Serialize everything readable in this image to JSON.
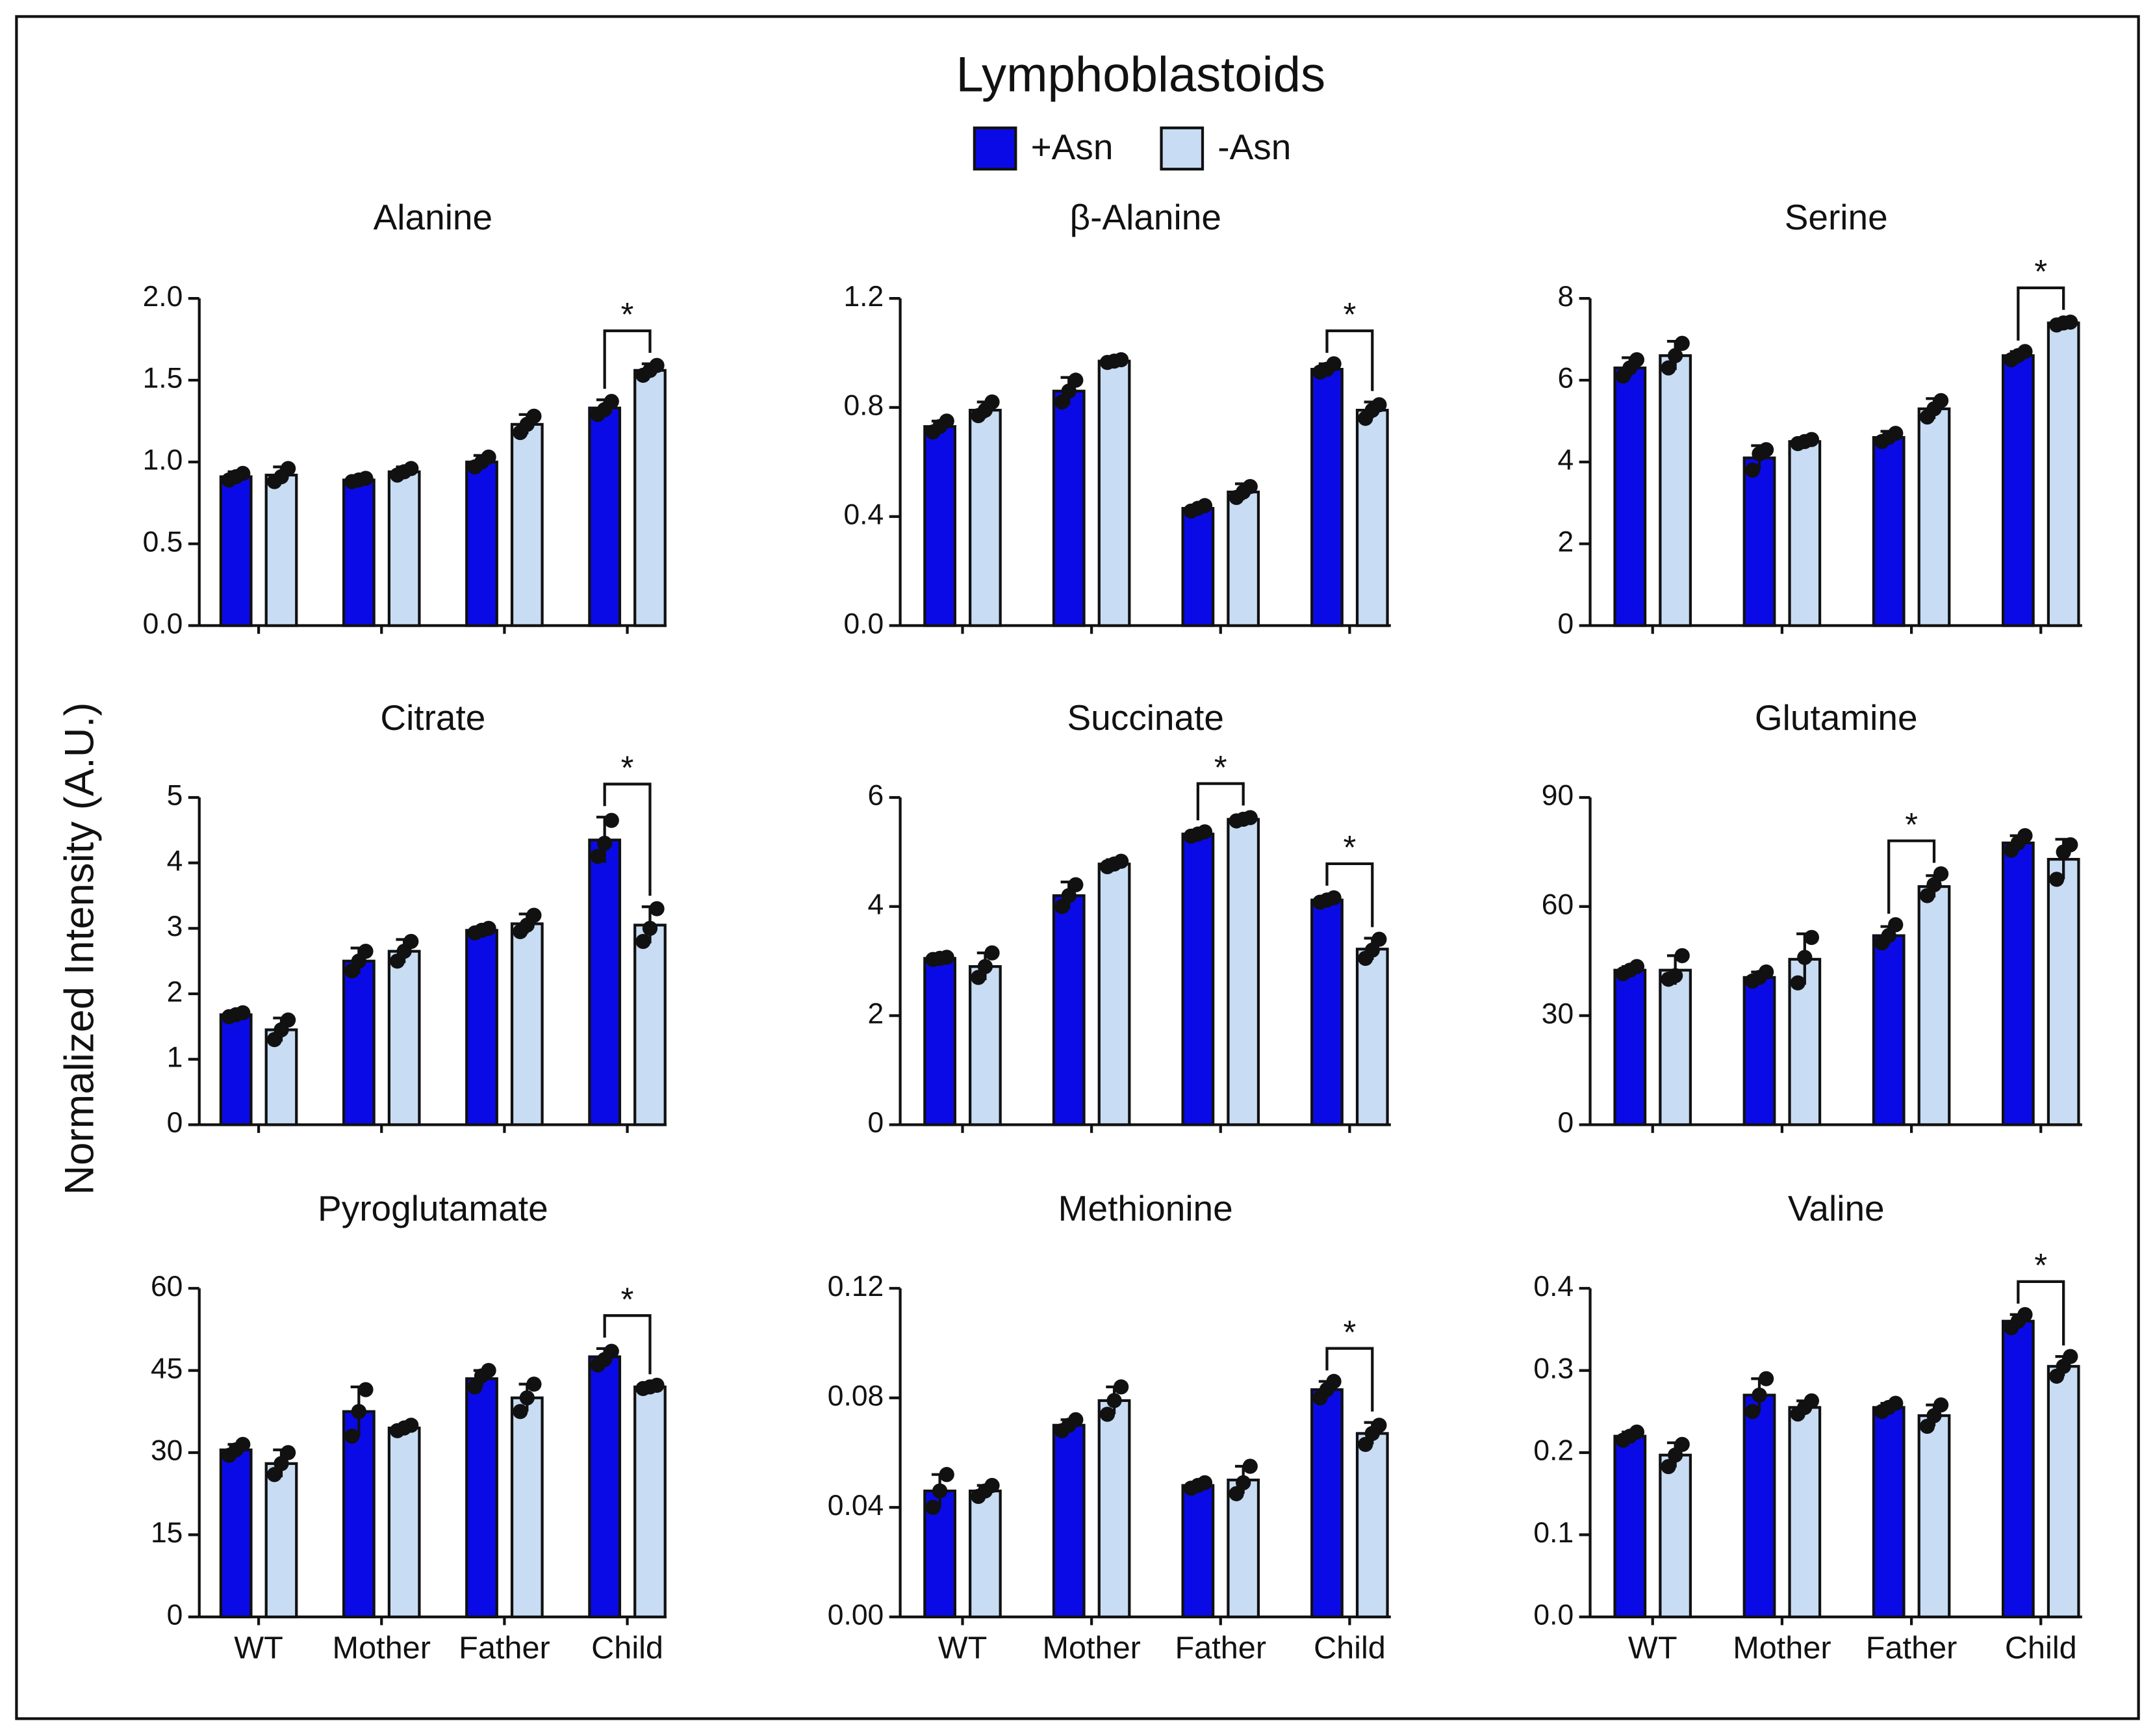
{
  "title": "Lymphoblastoids",
  "y_label": "Normalized Intensity (A.U.)",
  "chart_data": [
    {
      "type": "bar",
      "title": "Alanine",
      "categories": [
        null,
        null,
        null,
        null
      ],
      "ylim": [
        0,
        2
      ],
      "yticks": [
        {
          "value": 0,
          "label": "0.0"
        },
        0.5,
        {
          "value": 1,
          "label": "1.0"
        },
        1.5,
        {
          "value": 2,
          "label": "2.0"
        }
      ],
      "significance": [
        null,
        null,
        null,
        "*"
      ],
      "series": [
        {
          "name": "+Asn",
          "color": "#0a0ae6",
          "values": [
            0.91,
            0.89,
            1.0,
            1.33
          ],
          "errors": [
            0.03,
            0.02,
            0.04,
            0.05
          ],
          "points": [
            [
              0.89,
              0.91,
              0.93
            ],
            [
              0.88,
              0.89,
              0.9
            ],
            [
              0.97,
              1.0,
              1.03
            ],
            [
              1.29,
              1.32,
              1.37
            ]
          ]
        },
        {
          "name": "-Asn",
          "color": "#c8dcf4",
          "values": [
            0.92,
            0.94,
            1.23,
            1.56
          ],
          "errors": [
            0.05,
            0.03,
            0.06,
            0.04
          ],
          "points": [
            [
              0.88,
              0.91,
              0.96
            ],
            [
              0.92,
              0.94,
              0.96
            ],
            [
              1.18,
              1.23,
              1.28
            ],
            [
              1.53,
              1.56,
              1.59
            ]
          ]
        }
      ]
    },
    {
      "type": "bar",
      "title": "β-Alanine",
      "categories": [
        null,
        null,
        null,
        null
      ],
      "ylim": [
        0,
        1.2
      ],
      "yticks": [
        {
          "value": 0,
          "label": "0.0"
        },
        0.4,
        0.8,
        1.2
      ],
      "significance": [
        null,
        null,
        null,
        "*"
      ],
      "series": [
        {
          "name": "+Asn",
          "color": "#0a0ae6",
          "values": [
            0.73,
            0.86,
            0.43,
            0.94
          ],
          "errors": [
            0.02,
            0.05,
            0.01,
            0.02
          ],
          "points": [
            [
              0.71,
              0.73,
              0.75
            ],
            [
              0.82,
              0.86,
              0.9
            ],
            [
              0.42,
              0.43,
              0.44
            ],
            [
              0.93,
              0.94,
              0.96
            ]
          ]
        },
        {
          "name": "-Asn",
          "color": "#c8dcf4",
          "values": [
            0.79,
            0.97,
            0.49,
            0.79
          ],
          "errors": [
            0.03,
            0.005,
            0.03,
            0.03
          ],
          "points": [
            [
              0.77,
              0.79,
              0.82
            ],
            [
              0.965,
              0.97,
              0.975
            ],
            [
              0.47,
              0.49,
              0.51
            ],
            [
              0.76,
              0.79,
              0.81
            ]
          ]
        }
      ]
    },
    {
      "type": "bar",
      "title": "Serine",
      "categories": [
        null,
        null,
        null,
        null
      ],
      "ylim": [
        0,
        8
      ],
      "yticks": [
        0,
        2,
        4,
        6,
        8
      ],
      "significance": [
        null,
        null,
        null,
        "*"
      ],
      "series": [
        {
          "name": "+Asn",
          "color": "#0a0ae6",
          "values": [
            6.3,
            4.1,
            4.6,
            6.6
          ],
          "errors": [
            0.25,
            0.3,
            0.15,
            0.1
          ],
          "points": [
            [
              6.1,
              6.3,
              6.5
            ],
            [
              3.8,
              4.2,
              4.3
            ],
            [
              4.5,
              4.6,
              4.7
            ],
            [
              6.5,
              6.6,
              6.7
            ]
          ]
        },
        {
          "name": "-Asn",
          "color": "#c8dcf4",
          "values": [
            6.6,
            4.5,
            5.3,
            7.4
          ],
          "errors": [
            0.35,
            0.08,
            0.25,
            0.05
          ],
          "points": [
            [
              6.3,
              6.6,
              6.9
            ],
            [
              4.45,
              4.5,
              4.55
            ],
            [
              5.1,
              5.3,
              5.5
            ],
            [
              7.35,
              7.4,
              7.42
            ]
          ]
        }
      ]
    },
    {
      "type": "bar",
      "title": "Citrate",
      "categories": [
        null,
        null,
        null,
        null
      ],
      "ylim": [
        0,
        5
      ],
      "yticks": [
        0,
        1,
        2,
        3,
        4,
        5
      ],
      "significance": [
        null,
        null,
        null,
        "*"
      ],
      "series": [
        {
          "name": "+Asn",
          "color": "#0a0ae6",
          "values": [
            1.68,
            2.5,
            2.97,
            4.35
          ],
          "errors": [
            0.04,
            0.2,
            0.05,
            0.35
          ],
          "points": [
            [
              1.65,
              1.68,
              1.71
            ],
            [
              2.35,
              2.5,
              2.65
            ],
            [
              2.93,
              2.97,
              3.0
            ],
            [
              4.1,
              4.3,
              4.65
            ]
          ]
        },
        {
          "name": "-Asn",
          "color": "#c8dcf4",
          "values": [
            1.45,
            2.65,
            3.07,
            3.05
          ],
          "errors": [
            0.18,
            0.18,
            0.15,
            0.28
          ],
          "points": [
            [
              1.3,
              1.45,
              1.6
            ],
            [
              2.5,
              2.65,
              2.8
            ],
            [
              2.95,
              3.05,
              3.2
            ],
            [
              2.8,
              3.0,
              3.3
            ]
          ]
        }
      ]
    },
    {
      "type": "bar",
      "title": "Succinate",
      "categories": [
        null,
        null,
        null,
        null
      ],
      "ylim": [
        0,
        6
      ],
      "yticks": [
        0,
        2,
        4,
        6
      ],
      "significance": [
        null,
        null,
        "*",
        "*"
      ],
      "series": [
        {
          "name": "+Asn",
          "color": "#0a0ae6",
          "values": [
            3.05,
            4.2,
            5.33,
            4.12
          ],
          "errors": [
            0.03,
            0.25,
            0.05,
            0.06
          ],
          "points": [
            [
              3.03,
              3.05,
              3.07
            ],
            [
              4.0,
              4.2,
              4.4
            ],
            [
              5.29,
              5.33,
              5.37
            ],
            [
              4.08,
              4.12,
              4.16
            ]
          ]
        },
        {
          "name": "-Asn",
          "color": "#c8dcf4",
          "values": [
            2.9,
            4.78,
            5.6,
            3.22
          ],
          "errors": [
            0.25,
            0.08,
            0.05,
            0.2
          ],
          "points": [
            [
              2.7,
              2.9,
              3.15
            ],
            [
              4.73,
              4.78,
              4.83
            ],
            [
              5.57,
              5.6,
              5.63
            ],
            [
              3.05,
              3.2,
              3.4
            ]
          ]
        }
      ]
    },
    {
      "type": "bar",
      "title": "Glutamine",
      "categories": [
        null,
        null,
        null,
        null
      ],
      "ylim": [
        0,
        90
      ],
      "yticks": [
        0,
        30,
        60,
        90
      ],
      "significance": [
        null,
        null,
        "*",
        null
      ],
      "series": [
        {
          "name": "+Asn",
          "color": "#0a0ae6",
          "values": [
            42.5,
            40.5,
            52,
            77.5
          ],
          "errors": [
            1,
            1.5,
            2.5,
            2
          ],
          "points": [
            [
              41.5,
              42.5,
              43.5
            ],
            [
              39.5,
              40.5,
              42
            ],
            [
              50,
              52,
              55
            ],
            [
              75.5,
              77.5,
              79.5
            ]
          ]
        },
        {
          "name": "-Asn",
          "color": "#c8dcf4",
          "values": [
            42.5,
            45.5,
            65.5,
            73
          ],
          "errors": [
            4,
            7,
            3,
            5.5
          ],
          "points": [
            [
              40,
              41,
              46.5
            ],
            [
              39,
              46,
              51.5
            ],
            [
              63,
              66,
              69
            ],
            [
              67.5,
              75,
              77
            ]
          ]
        }
      ]
    },
    {
      "type": "bar",
      "title": "Pyroglutamate",
      "categories": [
        "WT",
        "Mother",
        "Father",
        "Child"
      ],
      "ylim": [
        0,
        60
      ],
      "yticks": [
        0,
        15,
        30,
        45,
        60
      ],
      "significance": [
        null,
        null,
        null,
        "*"
      ],
      "series": [
        {
          "name": "+Asn",
          "color": "#0a0ae6",
          "values": [
            30.5,
            37.5,
            43.5,
            47.5
          ],
          "errors": [
            1,
            4.5,
            1.5,
            1.5
          ],
          "points": [
            [
              29.5,
              30.5,
              31.5
            ],
            [
              33,
              37.5,
              41.5
            ],
            [
              42,
              44,
              45
            ],
            [
              46,
              47,
              48.5
            ]
          ]
        },
        {
          "name": "-Asn",
          "color": "#c8dcf4",
          "values": [
            28,
            34.5,
            40,
            42
          ],
          "errors": [
            2.5,
            0.5,
            2.5,
            0.3
          ],
          "points": [
            [
              26,
              28,
              30
            ],
            [
              34,
              34.5,
              35
            ],
            [
              37.5,
              40,
              42.5
            ],
            [
              41.7,
              42,
              42.3
            ]
          ]
        }
      ]
    },
    {
      "type": "bar",
      "title": "Methionine",
      "categories": [
        "WT",
        "Mother",
        "Father",
        "Child"
      ],
      "ylim": [
        0,
        0.12
      ],
      "yticks": [
        {
          "value": 0,
          "label": "0.00"
        },
        0.04,
        0.08,
        0.12
      ],
      "significance": [
        null,
        null,
        null,
        "*"
      ],
      "series": [
        {
          "name": "+Asn",
          "color": "#0a0ae6",
          "values": [
            0.046,
            0.07,
            0.048,
            0.083
          ],
          "errors": [
            0.006,
            0.002,
            0.001,
            0.003
          ],
          "points": [
            [
              0.04,
              0.046,
              0.052
            ],
            [
              0.068,
              0.07,
              0.072
            ],
            [
              0.047,
              0.048,
              0.049
            ],
            [
              0.08,
              0.083,
              0.086
            ]
          ]
        },
        {
          "name": "-Asn",
          "color": "#c8dcf4",
          "values": [
            0.046,
            0.079,
            0.05,
            0.067
          ],
          "errors": [
            0.002,
            0.005,
            0.005,
            0.004
          ],
          "points": [
            [
              0.044,
              0.046,
              0.048
            ],
            [
              0.074,
              0.079,
              0.084
            ],
            [
              0.045,
              0.049,
              0.055
            ],
            [
              0.063,
              0.067,
              0.07
            ]
          ]
        }
      ]
    },
    {
      "type": "bar",
      "title": "Valine",
      "categories": [
        "WT",
        "Mother",
        "Father",
        "Child"
      ],
      "ylim": [
        0,
        0.4
      ],
      "yticks": [
        {
          "value": 0,
          "label": "0.0"
        },
        0.1,
        0.2,
        0.3,
        0.4
      ],
      "significance": [
        null,
        null,
        null,
        "*"
      ],
      "series": [
        {
          "name": "+Asn",
          "color": "#0a0ae6",
          "values": [
            0.22,
            0.27,
            0.255,
            0.36
          ],
          "errors": [
            0.005,
            0.02,
            0.005,
            0.008
          ],
          "points": [
            [
              0.215,
              0.22,
              0.225
            ],
            [
              0.25,
              0.27,
              0.29
            ],
            [
              0.25,
              0.255,
              0.26
            ],
            [
              0.352,
              0.36,
              0.368
            ]
          ]
        },
        {
          "name": "-Asn",
          "color": "#c8dcf4",
          "values": [
            0.197,
            0.255,
            0.245,
            0.305
          ],
          "errors": [
            0.015,
            0.008,
            0.013,
            0.012
          ],
          "points": [
            [
              0.183,
              0.197,
              0.21
            ],
            [
              0.247,
              0.255,
              0.263
            ],
            [
              0.232,
              0.245,
              0.258
            ],
            [
              0.293,
              0.305,
              0.317
            ]
          ]
        }
      ]
    }
  ]
}
